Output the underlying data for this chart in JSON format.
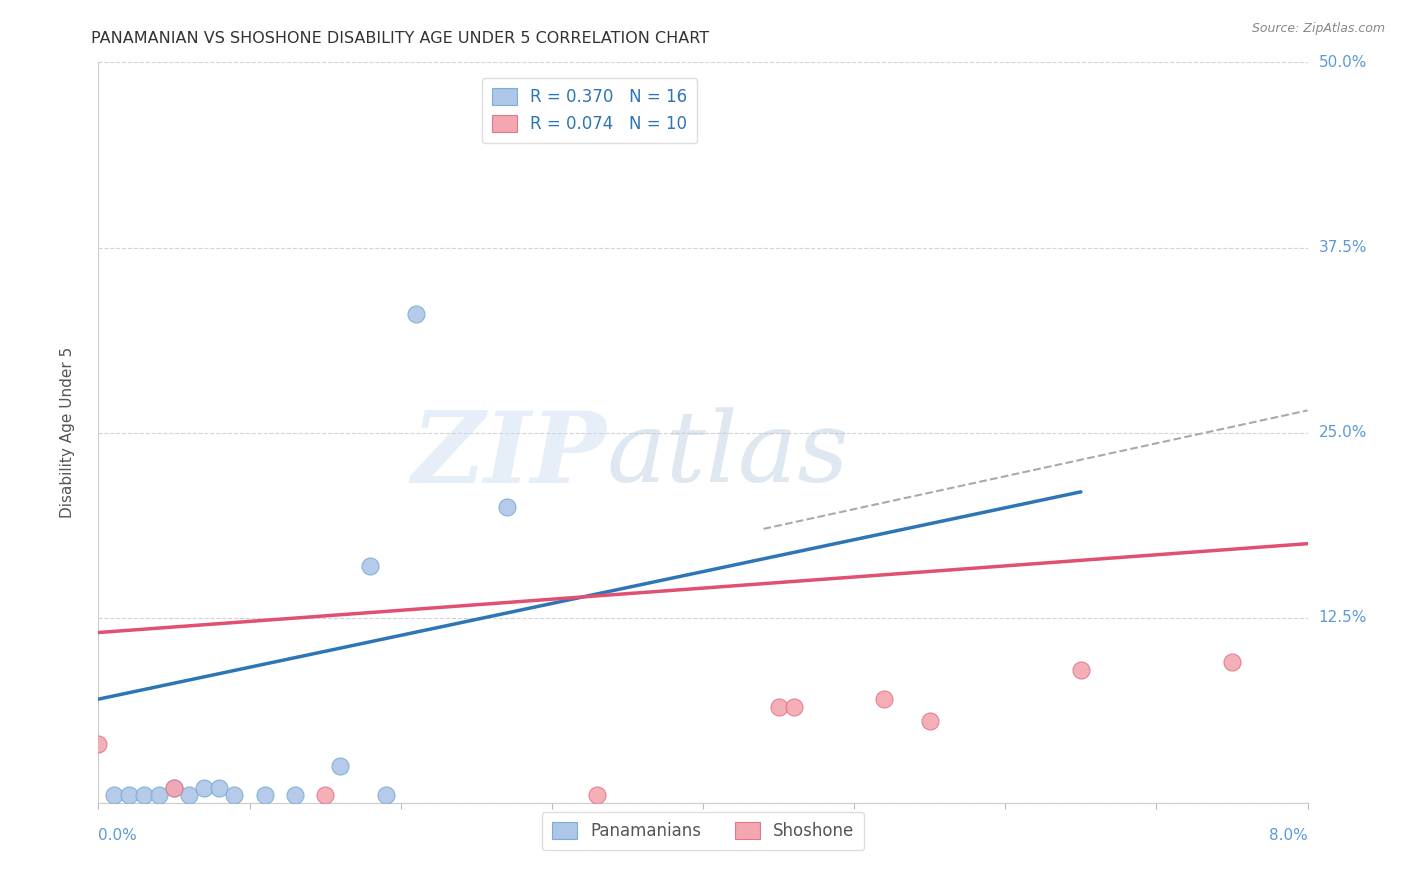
{
  "title": "PANAMANIAN VS SHOSHONE DISABILITY AGE UNDER 5 CORRELATION CHART",
  "source": "Source: ZipAtlas.com",
  "ylabel": "Disability Age Under 5",
  "xlim": [
    0.0,
    0.08
  ],
  "ylim": [
    0.0,
    0.5
  ],
  "xticks": [
    0.0,
    0.01,
    0.02,
    0.03,
    0.04,
    0.05,
    0.06,
    0.07,
    0.08
  ],
  "yticks": [
    0.0,
    0.125,
    0.25,
    0.375,
    0.5
  ],
  "yticklabels": [
    "",
    "12.5%",
    "25.0%",
    "37.5%",
    "50.0%"
  ],
  "ytick_color": "#5b9bd5",
  "xtick_color": "#5b9bd5",
  "grid_color": "#c8c8c8",
  "background_color": "#ffffff",
  "panamanian_color": "#aec6e8",
  "panamanian_edge_color": "#7bafd4",
  "shoshone_color": "#f4a7b0",
  "shoshone_edge_color": "#e07890",
  "panamanian_line_color": "#2e75b6",
  "shoshone_line_color": "#e05070",
  "dashed_line_color": "#aaaaaa",
  "legend_R_pana": "R = 0.370",
  "legend_N_pana": "N = 16",
  "legend_R_sho": "R = 0.074",
  "legend_N_sho": "N = 10",
  "legend_color": "#2e75b6",
  "panamanian_x": [
    0.001,
    0.002,
    0.003,
    0.004,
    0.005,
    0.006,
    0.007,
    0.008,
    0.009,
    0.011,
    0.013,
    0.016,
    0.018,
    0.019,
    0.021,
    0.027
  ],
  "panamanian_y": [
    0.005,
    0.005,
    0.005,
    0.005,
    0.01,
    0.005,
    0.01,
    0.01,
    0.005,
    0.005,
    0.005,
    0.025,
    0.16,
    0.005,
    0.33,
    0.2
  ],
  "shoshone_x": [
    0.0,
    0.005,
    0.015,
    0.033,
    0.045,
    0.046,
    0.052,
    0.055,
    0.065,
    0.075
  ],
  "shoshone_y": [
    0.04,
    0.01,
    0.005,
    0.005,
    0.065,
    0.065,
    0.07,
    0.055,
    0.09,
    0.095
  ],
  "pana_trend_x": [
    0.0,
    0.065
  ],
  "pana_trend_y": [
    0.07,
    0.21
  ],
  "sho_trend_x": [
    0.0,
    0.08
  ],
  "sho_trend_y": [
    0.115,
    0.175
  ],
  "dashed_trend_x": [
    0.044,
    0.08
  ],
  "dashed_trend_y": [
    0.185,
    0.265
  ]
}
